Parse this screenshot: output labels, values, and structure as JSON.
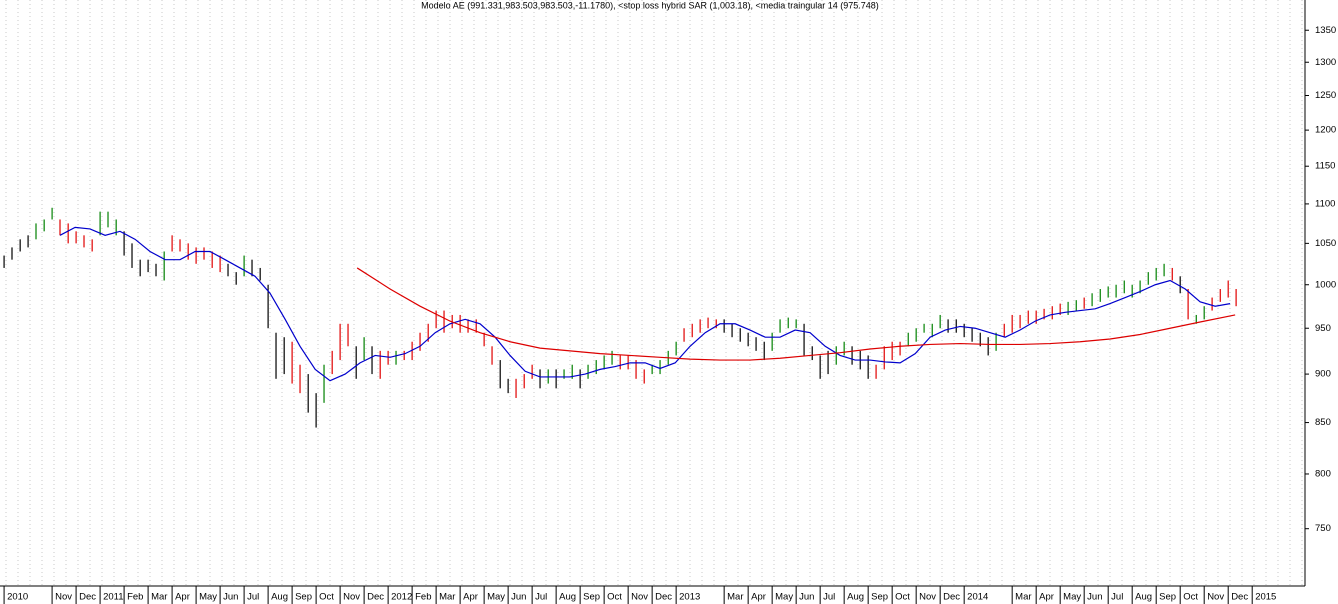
{
  "chart_data": {
    "type": "ohlc",
    "title": "Modelo AE (991.331,983.503,983.503,-11.1780), <stop loss hybrid SAR (1,003.18), <media traingular 14 (975.748)",
    "log_y": true,
    "xlim": [
      -1.17,
      53.2
    ],
    "ylim": [
      701,
      1399
    ],
    "yticks": [
      750,
      800,
      850,
      900,
      950,
      1000,
      1050,
      1100,
      1150,
      1200,
      1250,
      1300,
      1350
    ],
    "xticks": [
      {
        "value": -1,
        "label": "2010"
      },
      {
        "value": 1,
        "label": "Nov"
      },
      {
        "value": 2,
        "label": "Dec"
      },
      {
        "value": 3,
        "label": "2011"
      },
      {
        "value": 4,
        "label": "Feb"
      },
      {
        "value": 5,
        "label": "Mar"
      },
      {
        "value": 6,
        "label": "Apr"
      },
      {
        "value": 7,
        "label": "May"
      },
      {
        "value": 8,
        "label": "Jun"
      },
      {
        "value": 9,
        "label": "Jul"
      },
      {
        "value": 10,
        "label": "Aug"
      },
      {
        "value": 11,
        "label": "Sep"
      },
      {
        "value": 12,
        "label": "Oct"
      },
      {
        "value": 13,
        "label": "Nov"
      },
      {
        "value": 14,
        "label": "Dec"
      },
      {
        "value": 15,
        "label": "2012"
      },
      {
        "value": 16,
        "label": "Feb"
      },
      {
        "value": 17,
        "label": "Mar"
      },
      {
        "value": 18,
        "label": "Apr"
      },
      {
        "value": 19,
        "label": "May"
      },
      {
        "value": 20,
        "label": "Jun"
      },
      {
        "value": 21,
        "label": "Jul"
      },
      {
        "value": 22,
        "label": "Aug"
      },
      {
        "value": 23,
        "label": "Sep"
      },
      {
        "value": 24,
        "label": "Oct"
      },
      {
        "value": 25,
        "label": "Nov"
      },
      {
        "value": 26,
        "label": "Dec"
      },
      {
        "value": 27,
        "label": "2013"
      },
      {
        "value": 29,
        "label": "Mar"
      },
      {
        "value": 30,
        "label": "Apr"
      },
      {
        "value": 31,
        "label": "May"
      },
      {
        "value": 32,
        "label": "Jun"
      },
      {
        "value": 33,
        "label": "Jul"
      },
      {
        "value": 34,
        "label": "Aug"
      },
      {
        "value": 35,
        "label": "Sep"
      },
      {
        "value": 36,
        "label": "Oct"
      },
      {
        "value": 37,
        "label": "Nov"
      },
      {
        "value": 38,
        "label": "Dec"
      },
      {
        "value": 39,
        "label": "2014"
      },
      {
        "value": 41,
        "label": "Mar"
      },
      {
        "value": 42,
        "label": "Apr"
      },
      {
        "value": 43,
        "label": "May"
      },
      {
        "value": 44,
        "label": "Jun"
      },
      {
        "value": 45,
        "label": "Jul"
      },
      {
        "value": 46,
        "label": "Aug"
      },
      {
        "value": 47,
        "label": "Sep"
      },
      {
        "value": 48,
        "label": "Oct"
      },
      {
        "value": 49,
        "label": "Nov"
      },
      {
        "value": 50,
        "label": "Dec"
      },
      {
        "value": 51,
        "label": "2015"
      }
    ],
    "bars": {
      "x": [
        -1,
        -0.67,
        -0.33,
        0,
        0.33,
        0.67,
        1,
        1.33,
        1.67,
        2,
        2.33,
        2.67,
        3,
        3.33,
        3.67,
        4,
        4.33,
        4.67,
        5,
        5.33,
        5.67,
        6,
        6.33,
        6.67,
        7,
        7.33,
        7.67,
        8,
        8.33,
        8.67,
        9,
        9.33,
        9.67,
        10,
        10.33,
        10.67,
        11,
        11.33,
        11.67,
        12,
        12.33,
        12.67,
        13,
        13.33,
        13.67,
        14,
        14.33,
        14.67,
        15,
        15.33,
        15.67,
        16,
        16.33,
        16.67,
        17,
        17.33,
        17.67,
        18,
        18.33,
        18.67,
        19,
        19.33,
        19.67,
        20,
        20.33,
        20.67,
        21,
        21.33,
        21.67,
        22,
        22.33,
        22.67,
        23,
        23.33,
        23.67,
        24,
        24.33,
        24.67,
        25,
        25.33,
        25.67,
        26,
        26.33,
        26.67,
        27,
        27.33,
        27.67,
        28,
        28.33,
        28.67,
        29,
        29.33,
        29.67,
        30,
        30.33,
        30.67,
        31,
        31.33,
        31.67,
        32,
        32.33,
        32.67,
        33,
        33.33,
        33.67,
        34,
        34.33,
        34.67,
        35,
        35.33,
        35.67,
        36,
        36.33,
        36.67,
        37,
        37.33,
        37.67,
        38,
        38.33,
        38.67,
        39,
        39.33,
        39.67,
        40,
        40.33,
        40.67,
        41,
        41.33,
        41.67,
        42,
        42.33,
        42.67,
        43,
        43.33,
        43.67,
        44,
        44.33,
        44.67,
        45,
        45.33,
        45.67,
        46,
        46.33,
        46.67,
        47,
        47.33,
        47.67,
        48,
        48.33,
        48.67,
        49,
        49.33,
        49.67,
        50,
        50.33
      ],
      "low": [
        1020,
        1030,
        1040,
        1045,
        1055,
        1065,
        1080,
        1060,
        1050,
        1050,
        1045,
        1040,
        1060,
        1070,
        1060,
        1035,
        1020,
        1010,
        1015,
        1010,
        1005,
        1040,
        1040,
        1030,
        1025,
        1030,
        1020,
        1015,
        1010,
        1000,
        1010,
        1010,
        1005,
        950,
        895,
        900,
        890,
        880,
        860,
        845,
        870,
        900,
        915,
        930,
        895,
        915,
        900,
        895,
        910,
        910,
        915,
        915,
        925,
        935,
        950,
        945,
        950,
        945,
        945,
        945,
        930,
        910,
        885,
        880,
        875,
        885,
        895,
        885,
        890,
        885,
        895,
        895,
        885,
        895,
        900,
        905,
        910,
        905,
        905,
        895,
        890,
        900,
        900,
        910,
        920,
        935,
        940,
        945,
        950,
        950,
        945,
        940,
        935,
        930,
        925,
        915,
        925,
        945,
        950,
        950,
        920,
        915,
        895,
        900,
        910,
        920,
        910,
        905,
        895,
        895,
        905,
        915,
        920,
        930,
        935,
        945,
        940,
        950,
        945,
        945,
        940,
        935,
        930,
        920,
        925,
        940,
        945,
        950,
        955,
        955,
        960,
        960,
        965,
        965,
        970,
        972,
        975,
        980,
        985,
        985,
        990,
        985,
        990,
        1000,
        1005,
        1010,
        1005,
        990,
        960,
        955,
        960,
        970,
        980,
        985,
        975
      ],
      "high": [
        1035,
        1045,
        1055,
        1060,
        1075,
        1080,
        1095,
        1080,
        1075,
        1065,
        1060,
        1055,
        1090,
        1090,
        1080,
        1065,
        1050,
        1030,
        1030,
        1025,
        1040,
        1060,
        1055,
        1050,
        1045,
        1045,
        1040,
        1035,
        1025,
        1015,
        1035,
        1030,
        1020,
        1000,
        945,
        940,
        935,
        910,
        900,
        880,
        910,
        925,
        955,
        955,
        930,
        940,
        930,
        925,
        925,
        925,
        925,
        935,
        945,
        955,
        970,
        970,
        965,
        965,
        960,
        960,
        945,
        930,
        915,
        895,
        895,
        900,
        910,
        905,
        905,
        905,
        905,
        910,
        905,
        910,
        915,
        920,
        925,
        920,
        920,
        915,
        905,
        910,
        915,
        925,
        935,
        950,
        955,
        960,
        962,
        960,
        960,
        955,
        950,
        945,
        940,
        935,
        945,
        960,
        962,
        960,
        955,
        930,
        920,
        925,
        930,
        935,
        930,
        925,
        920,
        910,
        930,
        935,
        935,
        945,
        950,
        955,
        955,
        965,
        960,
        960,
        955,
        950,
        945,
        940,
        945,
        955,
        965,
        965,
        970,
        970,
        972,
        975,
        978,
        980,
        982,
        985,
        990,
        995,
        998,
        1000,
        1005,
        1000,
        1005,
        1015,
        1020,
        1025,
        1020,
        1010,
        995,
        965,
        975,
        985,
        995,
        1005,
        995
      ],
      "colors": [
        "#000000",
        "#000000",
        "#000000",
        "#000000",
        "#008000",
        "#008000",
        "#008000",
        "#e00000",
        "#e00000",
        "#e00000",
        "#e00000",
        "#e00000",
        "#008000",
        "#008000",
        "#008000",
        "#000000",
        "#000000",
        "#000000",
        "#000000",
        "#000000",
        "#008000",
        "#e00000",
        "#e00000",
        "#e00000",
        "#e00000",
        "#e00000",
        "#e00000",
        "#e00000",
        "#000000",
        "#000000",
        "#008000",
        "#000000",
        "#000000",
        "#000000",
        "#000000",
        "#000000",
        "#e00000",
        "#e00000",
        "#000000",
        "#000000",
        "#008000",
        "#e00000",
        "#e00000",
        "#e00000",
        "#000000",
        "#008000",
        "#000000",
        "#e00000",
        "#e00000",
        "#008000",
        "#e00000",
        "#e00000",
        "#e00000",
        "#e00000",
        "#e00000",
        "#e00000",
        "#e00000",
        "#e00000",
        "#e00000",
        "#e00000",
        "#e00000",
        "#e00000",
        "#000000",
        "#000000",
        "#e00000",
        "#e00000",
        "#e00000",
        "#000000",
        "#008000",
        "#000000",
        "#008000",
        "#008000",
        "#000000",
        "#008000",
        "#008000",
        "#008000",
        "#008000",
        "#e00000",
        "#e00000",
        "#e00000",
        "#e00000",
        "#008000",
        "#008000",
        "#008000",
        "#008000",
        "#e00000",
        "#e00000",
        "#e00000",
        "#e00000",
        "#e00000",
        "#000000",
        "#000000",
        "#000000",
        "#000000",
        "#000000",
        "#000000",
        "#008000",
        "#008000",
        "#008000",
        "#008000",
        "#000000",
        "#000000",
        "#000000",
        "#000000",
        "#008000",
        "#008000",
        "#000000",
        "#000000",
        "#000000",
        "#e00000",
        "#e00000",
        "#e00000",
        "#e00000",
        "#008000",
        "#008000",
        "#008000",
        "#008000",
        "#008000",
        "#000000",
        "#000000",
        "#000000",
        "#000000",
        "#000000",
        "#000000",
        "#008000",
        "#e00000",
        "#e00000",
        "#e00000",
        "#e00000",
        "#e00000",
        "#e00000",
        "#e00000",
        "#e00000",
        "#008000",
        "#008000",
        "#e00000",
        "#008000",
        "#008000",
        "#008000",
        "#008000",
        "#008000",
        "#008000",
        "#008000",
        "#008000",
        "#008000",
        "#008000",
        "#e00000",
        "#000000",
        "#e00000",
        "#008000",
        "#008000",
        "#e00000",
        "#e00000",
        "#e00000",
        "#e00000"
      ]
    },
    "series": [
      {
        "color": "#0000cc",
        "x": [
          1.33,
          1.96,
          2.58,
          3.21,
          3.83,
          4.46,
          5.08,
          5.71,
          6.33,
          6.96,
          7.58,
          8.21,
          8.83,
          9.46,
          10.08,
          10.71,
          11.33,
          11.96,
          12.58,
          13.21,
          13.83,
          14.46,
          15.08,
          15.71,
          16.33,
          16.96,
          17.58,
          18.21,
          18.83,
          19.46,
          20.08,
          20.71,
          21.33,
          21.96,
          22.58,
          23.21,
          23.83,
          24.46,
          25.08,
          25.71,
          26.33,
          26.96,
          27.58,
          28.21,
          28.83,
          29.46,
          30.08,
          30.71,
          31.33,
          31.96,
          32.58,
          33.21,
          33.83,
          34.46,
          35.08,
          35.71,
          36.33,
          36.96,
          37.58,
          38.21,
          38.83,
          39.46,
          40.08,
          40.71,
          41.33,
          41.96,
          42.58,
          43.21,
          43.83,
          44.46,
          45.08,
          45.71,
          46.33,
          46.96,
          47.58,
          48.21,
          48.83,
          49.46,
          50.08
        ],
        "values": [
          1060,
          1070,
          1068,
          1060,
          1065,
          1055,
          1040,
          1030,
          1030,
          1040,
          1040,
          1030,
          1020,
          1010,
          990,
          960,
          930,
          905,
          893,
          900,
          912,
          920,
          918,
          922,
          930,
          945,
          955,
          960,
          955,
          940,
          920,
          903,
          897,
          897,
          897,
          900,
          905,
          908,
          912,
          912,
          906,
          912,
          930,
          945,
          955,
          955,
          948,
          940,
          940,
          948,
          945,
          930,
          920,
          915,
          915,
          913,
          912,
          922,
          940,
          948,
          952,
          950,
          945,
          940,
          948,
          958,
          965,
          968,
          970,
          972,
          978,
          985,
          992,
          1000,
          1005,
          995,
          980,
          975,
          978
        ]
      },
      {
        "color": "#dd0000",
        "x": [
          13.71,
          15.08,
          16.33,
          17.58,
          18.83,
          20.08,
          21.33,
          22.58,
          23.83,
          25.08,
          26.33,
          27.58,
          28.83,
          30.08,
          31.33,
          32.58,
          33.83,
          35.08,
          36.33,
          37.58,
          38.83,
          40.08,
          41.33,
          42.58,
          43.83,
          45.08,
          46.33,
          47.58,
          48.83,
          50.29
        ],
        "values": [
          1020,
          995,
          975,
          958,
          945,
          935,
          928,
          925,
          922,
          920,
          918,
          916,
          915,
          915,
          917,
          920,
          923,
          927,
          930,
          932,
          933,
          932,
          932,
          933,
          935,
          938,
          943,
          950,
          957,
          965
        ]
      }
    ]
  }
}
